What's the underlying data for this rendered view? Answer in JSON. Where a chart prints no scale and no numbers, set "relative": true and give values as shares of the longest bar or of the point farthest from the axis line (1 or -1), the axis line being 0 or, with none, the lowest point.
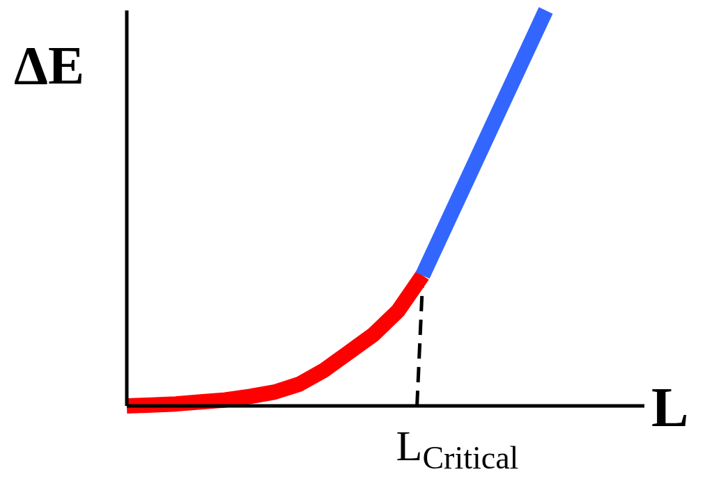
{
  "chart_data": {
    "type": "line",
    "relative": true,
    "xlabel": "L",
    "ylabel": "ΔE",
    "marker": "none",
    "line_style": "solid",
    "categories": [
      null,
      null,
      null,
      null,
      null,
      null,
      null,
      null,
      null,
      null,
      null,
      null,
      null,
      null,
      null,
      null,
      null,
      null,
      null,
      null,
      null,
      null
    ],
    "series": [
      {
        "color": "#ff0000",
        "values": [
          0,
          0.002,
          0.005,
          0.01,
          0.015,
          0.024,
          0.035,
          0.055,
          0.09,
          0.135,
          0.18,
          0.24,
          0.33,
          null,
          null,
          null,
          null,
          null,
          null,
          null,
          null,
          null
        ]
      },
      {
        "color": "#3366ff",
        "values": [
          null,
          null,
          null,
          null,
          null,
          null,
          null,
          null,
          null,
          null,
          null,
          null,
          0.33,
          0.464,
          0.598,
          0.732,
          0.866,
          1,
          null,
          null,
          null,
          null
        ]
      }
    ],
    "annotations": [
      "L$_{Critical}$"
    ]
  }
}
